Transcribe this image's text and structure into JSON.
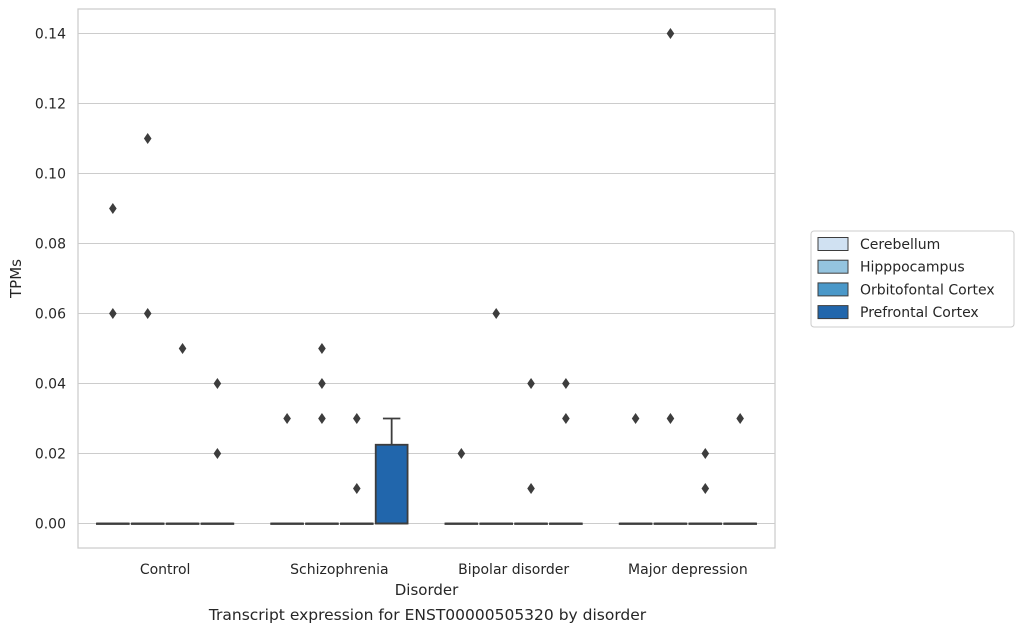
{
  "caption": "Transcript expression for ENST00000505320 by disorder",
  "chart_data": {
    "type": "box",
    "xlabel": "Disorder",
    "ylabel": "TPMs",
    "ylim": [
      -0.007,
      0.147
    ],
    "yticks": [
      0.0,
      0.02,
      0.04,
      0.06,
      0.08,
      0.1,
      0.12,
      0.14
    ],
    "ytick_labels": [
      "0.00",
      "0.02",
      "0.04",
      "0.06",
      "0.08",
      "0.10",
      "0.12",
      "0.14"
    ],
    "grid": "horizontal",
    "legend_position": "right",
    "categories": [
      "Control",
      "Schizophrenia",
      "Bipolar disorder",
      "Major depression"
    ],
    "series": [
      {
        "name": "Cerebellum",
        "color": "#d0e1f2",
        "boxes": [
          {
            "q1": 0,
            "median": 0,
            "q3": 0,
            "whisker_low": 0,
            "whisker_high": 0,
            "outliers": [
              0.09,
              0.06
            ]
          },
          {
            "q1": 0,
            "median": 0,
            "q3": 0,
            "whisker_low": 0,
            "whisker_high": 0,
            "outliers": [
              0.03
            ]
          },
          {
            "q1": 0,
            "median": 0,
            "q3": 0,
            "whisker_low": 0,
            "whisker_high": 0,
            "outliers": [
              0.02
            ]
          },
          {
            "q1": 0,
            "median": 0,
            "q3": 0,
            "whisker_low": 0,
            "whisker_high": 0,
            "outliers": [
              0.03
            ]
          }
        ]
      },
      {
        "name": "Hipppocampus",
        "color": "#94c4df",
        "boxes": [
          {
            "q1": 0,
            "median": 0,
            "q3": 0,
            "whisker_low": 0,
            "whisker_high": 0,
            "outliers": [
              0.11,
              0.06
            ]
          },
          {
            "q1": 0,
            "median": 0,
            "q3": 0,
            "whisker_low": 0,
            "whisker_high": 0,
            "outliers": [
              0.05,
              0.04,
              0.03
            ]
          },
          {
            "q1": 0,
            "median": 0,
            "q3": 0,
            "whisker_low": 0,
            "whisker_high": 0,
            "outliers": [
              0.06
            ]
          },
          {
            "q1": 0,
            "median": 0,
            "q3": 0,
            "whisker_low": 0,
            "whisker_high": 0,
            "outliers": [
              0.14,
              0.03
            ]
          }
        ]
      },
      {
        "name": "Orbitofontal Cortex",
        "color": "#4a98c9",
        "boxes": [
          {
            "q1": 0,
            "median": 0,
            "q3": 0,
            "whisker_low": 0,
            "whisker_high": 0,
            "outliers": [
              0.05
            ]
          },
          {
            "q1": 0,
            "median": 0,
            "q3": 0,
            "whisker_low": 0,
            "whisker_high": 0,
            "outliers": [
              0.03,
              0.01
            ]
          },
          {
            "q1": 0,
            "median": 0,
            "q3": 0,
            "whisker_low": 0,
            "whisker_high": 0,
            "outliers": [
              0.04,
              0.01
            ]
          },
          {
            "q1": 0,
            "median": 0,
            "q3": 0,
            "whisker_low": 0,
            "whisker_high": 0,
            "outliers": [
              0.02,
              0.01
            ]
          }
        ]
      },
      {
        "name": "Prefrontal Cortex",
        "color": "#2166ac",
        "boxes": [
          {
            "q1": 0,
            "median": 0,
            "q3": 0,
            "whisker_low": 0,
            "whisker_high": 0,
            "outliers": [
              0.04,
              0.02
            ]
          },
          {
            "q1": 0,
            "median": 0,
            "q3": 0.0225,
            "whisker_low": 0,
            "whisker_high": 0.03,
            "outliers": []
          },
          {
            "q1": 0,
            "median": 0,
            "q3": 0,
            "whisker_low": 0,
            "whisker_high": 0,
            "outliers": [
              0.04,
              0.03
            ]
          },
          {
            "q1": 0,
            "median": 0,
            "q3": 0,
            "whisker_low": 0,
            "whisker_high": 0,
            "outliers": [
              0.03
            ]
          }
        ]
      }
    ]
  }
}
